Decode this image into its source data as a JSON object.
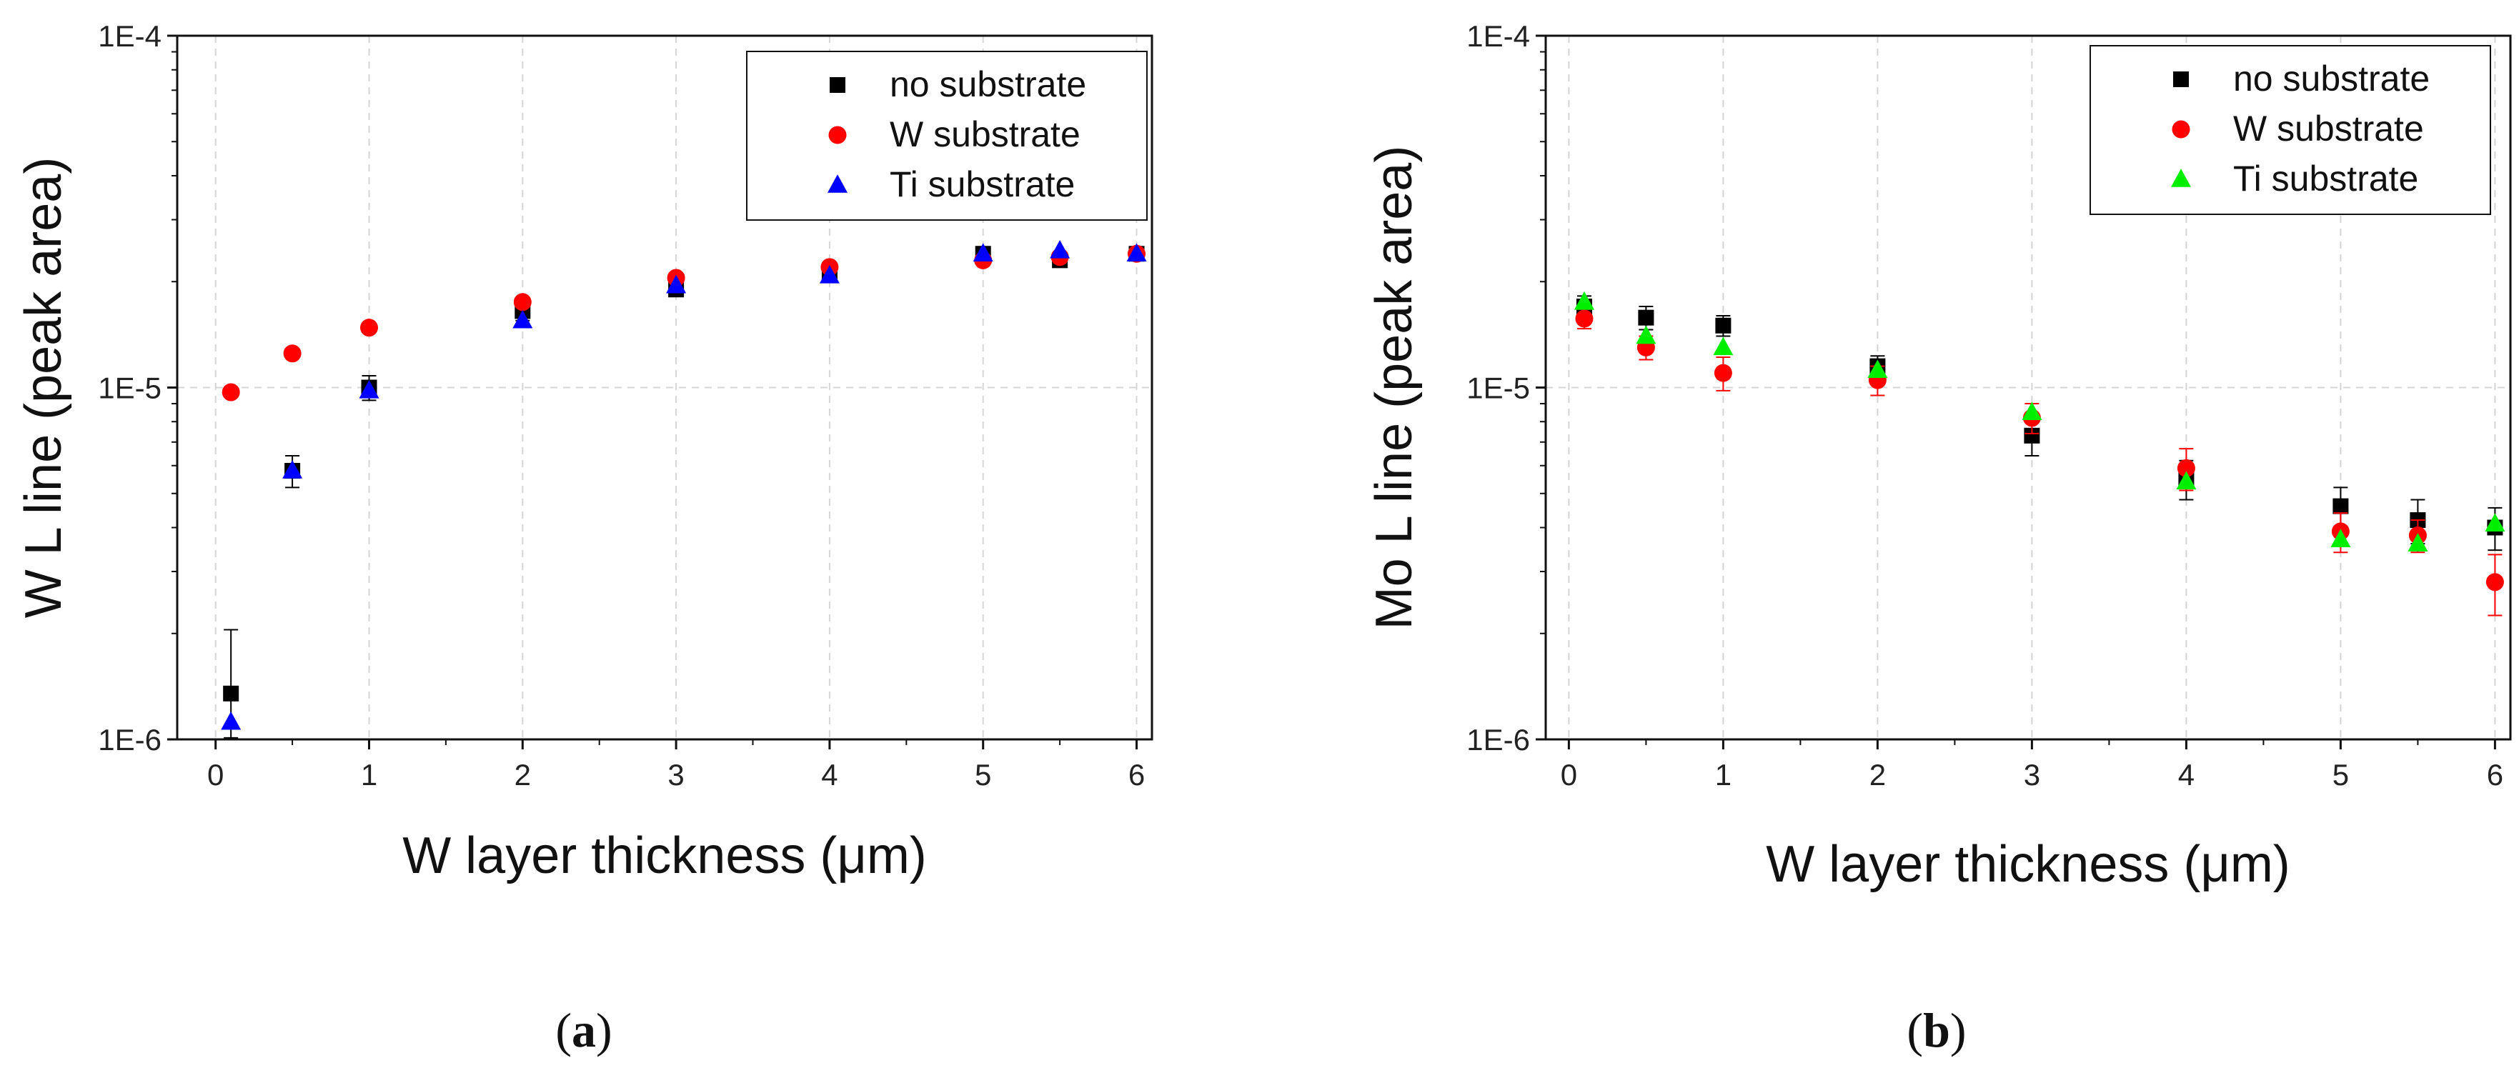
{
  "figure": {
    "panels": [
      "(a)",
      "(b)"
    ]
  },
  "chart_data": [
    {
      "type": "scatter",
      "panel_label": "(a)",
      "xlabel": "W layer thickness (μm)",
      "ylabel": "W L line (peak area)",
      "xlim": [
        -0.25,
        6.1
      ],
      "ylim": [
        1e-06,
        0.0001
      ],
      "yscale": "log",
      "x_ticks": [
        0,
        1,
        2,
        3,
        4,
        5,
        6
      ],
      "y_ticks": [
        1e-06,
        1e-05,
        0.0001
      ],
      "y_tick_labels": [
        "1E-6",
        "1E-5",
        "1E-4"
      ],
      "grid": true,
      "legend_position": "top-right",
      "series": [
        {
          "name": "no substrate",
          "marker": "square",
          "color": "#000000",
          "x": [
            0.1,
            0.5,
            1,
            2,
            3,
            4,
            5,
            5.5,
            6
          ],
          "y": [
            1.35e-06,
            5.8e-06,
            1e-05,
            1.65e-05,
            1.9e-05,
            2.1e-05,
            2.4e-05,
            2.3e-05,
            2.4e-05
          ],
          "err": [
            7e-07,
            6e-07,
            8e-07,
            1e-06,
            8e-07,
            5e-07,
            8e-07,
            6e-07,
            6e-07
          ]
        },
        {
          "name": "W substrate",
          "marker": "circle",
          "color": "#ff0000",
          "x": [
            0.1,
            0.5,
            1,
            2,
            3,
            4,
            5,
            5.5,
            6
          ],
          "y": [
            9.7e-06,
            1.25e-05,
            1.48e-05,
            1.75e-05,
            2.05e-05,
            2.2e-05,
            2.3e-05,
            2.35e-05,
            2.4e-05
          ],
          "err": [
            0,
            0,
            0,
            0,
            0,
            0,
            0,
            0,
            0
          ]
        },
        {
          "name": "Ti substrate",
          "marker": "triangle",
          "color": "#0000ff",
          "x": [
            0.1,
            0.5,
            1,
            2,
            3,
            4,
            5,
            5.5,
            6
          ],
          "y": [
            1.12e-06,
            5.8e-06,
            9.8e-06,
            1.55e-05,
            1.95e-05,
            2.08e-05,
            2.4e-05,
            2.45e-05,
            2.4e-05
          ],
          "err": [
            0,
            0,
            0,
            0,
            0,
            0,
            0,
            0,
            0
          ]
        }
      ]
    },
    {
      "type": "scatter",
      "panel_label": "(b)",
      "xlabel": "W layer thickness (μm)",
      "ylabel": "Mo L line (peak area)",
      "xlim": [
        -0.15,
        6.1
      ],
      "ylim": [
        1e-06,
        0.0001
      ],
      "yscale": "log",
      "x_ticks": [
        0,
        1,
        2,
        3,
        4,
        5,
        6
      ],
      "y_ticks": [
        1e-06,
        1e-05,
        0.0001
      ],
      "y_tick_labels": [
        "1E-6",
        "1E-5",
        "1E-4"
      ],
      "grid": true,
      "legend_position": "top-right",
      "series": [
        {
          "name": "no substrate",
          "marker": "square",
          "color": "#000000",
          "x": [
            0.1,
            0.5,
            1,
            2,
            3,
            4,
            5,
            5.5,
            6
          ],
          "y": [
            1.7e-05,
            1.58e-05,
            1.5e-05,
            1.15e-05,
            7.3e-06,
            5.5e-06,
            4.6e-06,
            4.2e-06,
            4e-06
          ],
          "err": [
            1.2e-06,
            1.2e-06,
            1e-06,
            8e-07,
            9e-07,
            7e-07,
            6e-07,
            6e-07,
            5.5e-07
          ]
        },
        {
          "name": "W substrate",
          "marker": "circle",
          "color": "#ff0000",
          "x": [
            0.1,
            0.5,
            1,
            2,
            3,
            4,
            5,
            5.5,
            6
          ],
          "y": [
            1.57e-05,
            1.3e-05,
            1.1e-05,
            1.05e-05,
            8.2e-06,
            5.9e-06,
            3.9e-06,
            3.8e-06,
            2.8e-06
          ],
          "err": [
            1e-06,
            1e-06,
            1.2e-06,
            1e-06,
            8e-07,
            8e-07,
            5e-07,
            4e-07,
            5.5e-07
          ]
        },
        {
          "name": "Ti substrate",
          "marker": "triangle",
          "color": "#00ee00",
          "x": [
            0.1,
            0.5,
            1,
            2,
            3,
            4,
            5,
            5.5,
            6
          ],
          "y": [
            1.75e-05,
            1.4e-05,
            1.3e-05,
            1.12e-05,
            8.5e-06,
            5.4e-06,
            3.7e-06,
            3.6e-06,
            4.1e-06
          ],
          "err": [
            0,
            0,
            0,
            0,
            0,
            0,
            0,
            0,
            0
          ]
        }
      ]
    }
  ]
}
